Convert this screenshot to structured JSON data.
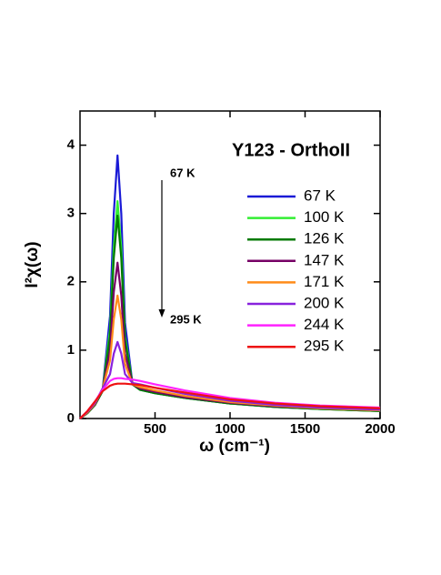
{
  "chart_data": {
    "type": "line",
    "title": "Y123 - OrthoII",
    "xlabel": "ω (cm⁻¹)",
    "ylabel": "I²χ(ω)",
    "annotations": [
      "67 K",
      "295 K"
    ],
    "x": [
      0,
      50,
      100,
      150,
      200,
      225,
      250,
      275,
      300,
      350,
      400,
      500,
      700,
      1000,
      1300,
      1600,
      2000
    ],
    "series": [
      {
        "name": "67 K",
        "color": "#1a1ad6",
        "values": [
          0,
          0.08,
          0.2,
          0.4,
          1.5,
          3.0,
          3.85,
          3.0,
          1.4,
          0.5,
          0.42,
          0.37,
          0.3,
          0.22,
          0.17,
          0.14,
          0.11
        ]
      },
      {
        "name": "100 K",
        "color": "#33ee33",
        "values": [
          0,
          0.08,
          0.2,
          0.4,
          1.3,
          2.5,
          3.18,
          2.5,
          1.2,
          0.5,
          0.42,
          0.37,
          0.3,
          0.22,
          0.17,
          0.14,
          0.11
        ]
      },
      {
        "name": "126 K",
        "color": "#007a00",
        "values": [
          0,
          0.08,
          0.2,
          0.4,
          1.2,
          2.35,
          2.97,
          2.35,
          1.15,
          0.5,
          0.42,
          0.37,
          0.3,
          0.22,
          0.17,
          0.14,
          0.11
        ]
      },
      {
        "name": "147 K",
        "color": "#770066",
        "values": [
          0,
          0.09,
          0.21,
          0.42,
          1.0,
          1.85,
          2.28,
          1.8,
          0.95,
          0.5,
          0.44,
          0.39,
          0.31,
          0.23,
          0.18,
          0.15,
          0.12
        ]
      },
      {
        "name": "171 K",
        "color": "#ff8c1a",
        "values": [
          0,
          0.09,
          0.22,
          0.43,
          0.85,
          1.45,
          1.8,
          1.45,
          0.8,
          0.5,
          0.46,
          0.41,
          0.33,
          0.24,
          0.19,
          0.15,
          0.12
        ]
      },
      {
        "name": "200 K",
        "color": "#8822dd",
        "values": [
          0,
          0.1,
          0.23,
          0.44,
          0.65,
          0.95,
          1.12,
          0.95,
          0.65,
          0.52,
          0.5,
          0.45,
          0.36,
          0.26,
          0.2,
          0.16,
          0.13
        ]
      },
      {
        "name": "244 K",
        "color": "#ff22ff",
        "values": [
          0,
          0.11,
          0.25,
          0.42,
          0.55,
          0.58,
          0.59,
          0.59,
          0.58,
          0.57,
          0.55,
          0.5,
          0.41,
          0.3,
          0.23,
          0.19,
          0.16
        ]
      },
      {
        "name": "295 K",
        "color": "#ee1111",
        "values": [
          0,
          0.11,
          0.25,
          0.4,
          0.48,
          0.5,
          0.51,
          0.51,
          0.51,
          0.5,
          0.49,
          0.45,
          0.38,
          0.28,
          0.22,
          0.18,
          0.15
        ]
      }
    ],
    "xlim": [
      0,
      2000
    ],
    "xticks": [
      500,
      1000,
      1500,
      2000
    ],
    "ylim": [
      0,
      4.5
    ],
    "yticks": [
      0,
      1,
      2,
      3,
      4
    ],
    "grid": false
  }
}
